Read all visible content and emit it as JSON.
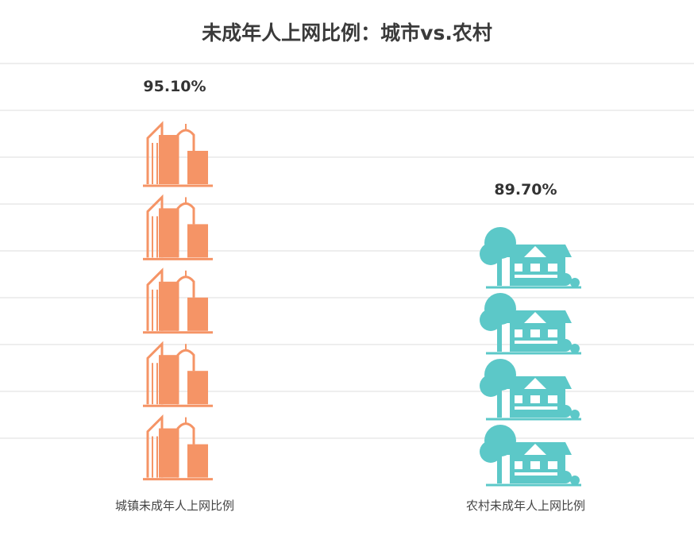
{
  "chart_data": {
    "type": "bar",
    "title": "未成年人上网比例：城市vs.农村",
    "categories": [
      "城镇未成年人上网比例",
      "农村未成年人上网比例"
    ],
    "values": [
      95.1,
      89.7
    ],
    "value_labels": [
      "95.10%",
      "89.70%"
    ],
    "unit": "%",
    "icons": [
      "city-buildings-icon",
      "house-with-tree-icon"
    ],
    "colors": [
      "#F59466",
      "#5CC8C8"
    ],
    "grid": true,
    "legend": "none"
  }
}
